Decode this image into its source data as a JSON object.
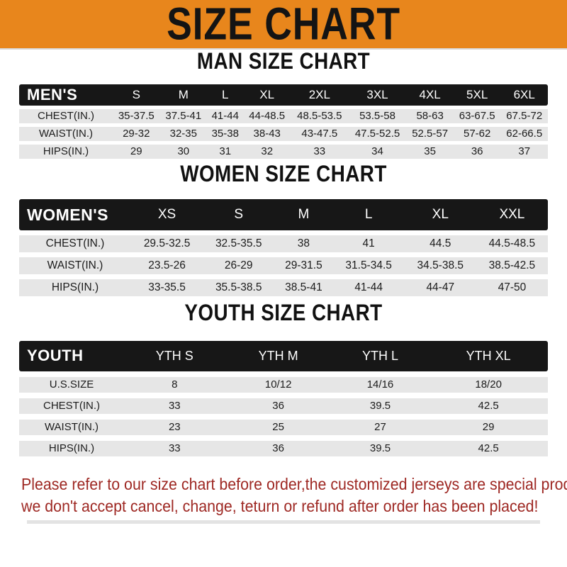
{
  "banner": {
    "title": "SIZE CHART"
  },
  "sections": [
    {
      "heading": "MAN SIZE CHART",
      "table": {
        "header": [
          "MEN'S",
          "S",
          "M",
          "L",
          "XL",
          "2XL",
          "3XL",
          "4XL",
          "5XL",
          "6XL"
        ],
        "rows": [
          [
            "CHEST(IN.)",
            "35-37.5",
            "37.5-41",
            "41-44",
            "44-48.5",
            "48.5-53.5",
            "53.5-58",
            "58-63",
            "63-67.5",
            "67.5-72"
          ],
          [
            "WAIST(IN.)",
            "29-32",
            "32-35",
            "35-38",
            "38-43",
            "43-47.5",
            "47.5-52.5",
            "52.5-57",
            "57-62",
            "62-66.5"
          ],
          [
            "HIPS(IN.)",
            "29",
            "30",
            "31",
            "32",
            "33",
            "34",
            "35",
            "36",
            "37"
          ]
        ]
      }
    },
    {
      "heading": "WOMEN SIZE CHART",
      "table": {
        "header": [
          "WOMEN'S",
          "XS",
          "S",
          "M",
          "L",
          "XL",
          "XXL"
        ],
        "rows": [
          [
            "CHEST(IN.)",
            "29.5-32.5",
            "32.5-35.5",
            "38",
            "41",
            "44.5",
            "44.5-48.5"
          ],
          [
            "WAIST(IN.)",
            "23.5-26",
            "26-29",
            "29-31.5",
            "31.5-34.5",
            "34.5-38.5",
            "38.5-42.5"
          ],
          [
            "HIPS(IN.)",
            "33-35.5",
            "35.5-38.5",
            "38.5-41",
            "41-44",
            "44-47",
            "47-50"
          ]
        ]
      }
    },
    {
      "heading": "YOUTH SIZE CHART",
      "table": {
        "header": [
          "YOUTH",
          "YTH S",
          "YTH M",
          "YTH L",
          "YTH XL"
        ],
        "rows": [
          [
            "U.S.SIZE",
            "8",
            "10/12",
            "14/16",
            "18/20"
          ],
          [
            "CHEST(IN.)",
            "33",
            "36",
            "39.5",
            "42.5"
          ],
          [
            "WAIST(IN.)",
            "23",
            "25",
            "27",
            "29"
          ],
          [
            "HIPS(IN.)",
            "33",
            "36",
            "39.5",
            "42.5"
          ]
        ]
      }
    }
  ],
  "footer": {
    "line1": "Please refer to our size chart before order,the customized jerseys are special products,",
    "line2": "we don't accept cancel, change, teturn or refund after order has been placed!"
  },
  "colors": {
    "banner_bg": "#e8861c",
    "heading_text": "#111111",
    "table_header_bg": "#171717",
    "table_header_text": "#ffffff",
    "row_bg": "#e6e6e6",
    "footer_text": "#9e2823"
  }
}
